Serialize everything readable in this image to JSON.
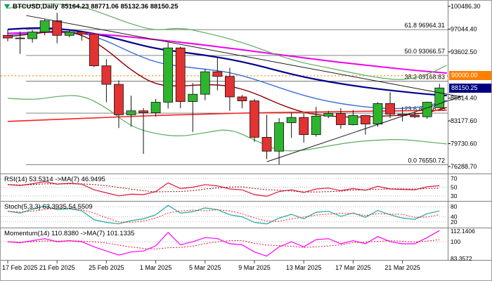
{
  "window": {
    "symbol_title": "BTCUSD,Daily",
    "ohlc_text": "85164.23 88771.06 85132.36 88150.25"
  },
  "colors": {
    "background": "#ffffff",
    "bull": "#2eb52e",
    "bear": "#e23232",
    "candle_border": "#111111",
    "axis_text": "#000000",
    "separator": "#808080",
    "fib_line": "#707070",
    "trendline": "#1a1a1a",
    "level_line": "#b8b8b8",
    "hline_90000": "#ff8000",
    "badge_90000_bg": "#ff8000",
    "badge_current_bg": "#000080"
  },
  "chart_data": {
    "type": "candlestick",
    "symbol": "BTCUSD",
    "timeframe": "Daily",
    "current_ohlc": {
      "open": 85164.23,
      "high": 88771.06,
      "low": 85132.36,
      "close": 88150.25
    },
    "ylim": [
      75333,
      101123
    ],
    "y_axis_labels": [
      "100486.30",
      "97044.40",
      "93602.50",
      "86614.40",
      "83177.60",
      "79730.60",
      "76288.70"
    ],
    "price_badges": [
      {
        "name": "hline-price",
        "label": "90000.00",
        "price": 90000.0
      },
      {
        "name": "current-price",
        "label": "88150.25",
        "price": 88150.25
      }
    ],
    "hline": {
      "price": 90000.0,
      "label": "90000.00"
    },
    "fibonacci": [
      {
        "label": "61.8",
        "price": 96964.31
      },
      {
        "label": "50.0",
        "price": 93066.57
      },
      {
        "label": "38.2",
        "price": 89168.83
      },
      {
        "label": "23.6",
        "price": 84346.2
      },
      {
        "label": "0.0",
        "price": 76550.72
      }
    ],
    "trendlines": [
      {
        "name": "descending",
        "from": [
          1.5,
          99100
        ],
        "to": [
          36.8,
          86800
        ]
      },
      {
        "name": "ascending",
        "from": [
          21,
          77000
        ],
        "to": [
          36.8,
          86900
        ]
      }
    ],
    "candles": [
      [
        96100,
        97000,
        95200,
        95700
      ],
      [
        95700,
        96700,
        93300,
        95600
      ],
      [
        95600,
        96900,
        95000,
        96600
      ],
      [
        96600,
        98500,
        96100,
        98300
      ],
      [
        98300,
        99500,
        94900,
        96100
      ],
      [
        96100,
        96900,
        95800,
        96600
      ],
      [
        96600,
        96700,
        95300,
        96300
      ],
      [
        96300,
        96500,
        91300,
        91500
      ],
      [
        91500,
        92500,
        86000,
        88700
      ],
      [
        88700,
        89300,
        82100,
        84100
      ],
      [
        84100,
        87000,
        82300,
        84700
      ],
      [
        84700,
        85100,
        78200,
        84400
      ],
      [
        84400,
        86500,
        83800,
        86000
      ],
      [
        86000,
        95000,
        85050,
        94200
      ],
      [
        94200,
        94400,
        85100,
        86100
      ],
      [
        86100,
        88900,
        81500,
        87200
      ],
      [
        87200,
        91000,
        86300,
        90600
      ],
      [
        90600,
        92800,
        87800,
        89900
      ],
      [
        89900,
        91200,
        84700,
        86800
      ],
      [
        86800,
        87100,
        85100,
        86200
      ],
      [
        86200,
        86500,
        80000,
        80700
      ],
      [
        80700,
        84100,
        77400,
        78600
      ],
      [
        78600,
        83600,
        76600,
        82900
      ],
      [
        82900,
        84400,
        80600,
        83700
      ],
      [
        83700,
        84300,
        79900,
        81100
      ],
      [
        81100,
        85300,
        80800,
        83900
      ],
      [
        83900,
        84700,
        83600,
        84300
      ],
      [
        84300,
        85100,
        82000,
        82600
      ],
      [
        82600,
        84800,
        82500,
        84000
      ],
      [
        84000,
        84100,
        81100,
        82700
      ],
      [
        82700,
        86000,
        82300,
        85800
      ],
      [
        85800,
        87500,
        83600,
        84200
      ],
      [
        84200,
        85300,
        83100,
        84000
      ],
      [
        84000,
        84500,
        83600,
        83800
      ],
      [
        83800,
        86100,
        83500,
        86000
      ],
      [
        85164.23,
        88771.06,
        85132.36,
        88150.25
      ]
    ],
    "overlays": [
      {
        "name": "ma-navy",
        "color": "#00008b",
        "width": 2.2,
        "points": [
          [
            0,
            97000
          ],
          [
            2,
            97250
          ],
          [
            4,
            97150
          ],
          [
            6,
            96700
          ],
          [
            8,
            96000
          ],
          [
            10,
            95000
          ],
          [
            12,
            94100
          ],
          [
            14,
            93600
          ],
          [
            16,
            93100
          ],
          [
            18,
            92500
          ],
          [
            20,
            91700
          ],
          [
            22,
            90700
          ],
          [
            24,
            89800
          ],
          [
            26,
            89100
          ],
          [
            28,
            88500
          ],
          [
            30,
            88000
          ],
          [
            32,
            87600
          ],
          [
            34,
            87200
          ],
          [
            35.6,
            87000
          ]
        ]
      },
      {
        "name": "ma-magenta",
        "color": "#ee00ee",
        "width": 2,
        "points": [
          [
            0,
            96400
          ],
          [
            3,
            96650
          ],
          [
            6,
            96450
          ],
          [
            9,
            96050
          ],
          [
            12,
            95450
          ],
          [
            15,
            94850
          ],
          [
            18,
            94150
          ],
          [
            21,
            93450
          ],
          [
            24,
            92700
          ],
          [
            27,
            92000
          ],
          [
            30,
            91400
          ],
          [
            33,
            90800
          ],
          [
            35.6,
            90400
          ]
        ]
      },
      {
        "name": "ma-blue",
        "color": "#3a6fd8",
        "width": 1.4,
        "points": [
          [
            0,
            96100
          ],
          [
            2,
            96450
          ],
          [
            4,
            96800
          ],
          [
            6,
            96500
          ],
          [
            8,
            95300
          ],
          [
            10,
            93500
          ],
          [
            12,
            92000
          ],
          [
            14,
            91400
          ],
          [
            16,
            91000
          ],
          [
            18,
            90500
          ],
          [
            20,
            89500
          ],
          [
            22,
            88200
          ],
          [
            24,
            87000
          ],
          [
            26,
            86100
          ],
          [
            28,
            85500
          ],
          [
            30,
            85100
          ],
          [
            32,
            85000
          ],
          [
            34,
            85400
          ],
          [
            35.6,
            86300
          ]
        ]
      },
      {
        "name": "ma-maroon",
        "color": "#8b0000",
        "width": 1.4,
        "points": [
          [
            0,
            95900
          ],
          [
            2,
            96300
          ],
          [
            4,
            96800
          ],
          [
            6,
            96300
          ],
          [
            8,
            94000
          ],
          [
            10,
            90800
          ],
          [
            12,
            88600
          ],
          [
            14,
            88400
          ],
          [
            16,
            88700
          ],
          [
            18,
            88500
          ],
          [
            20,
            87400
          ],
          [
            22,
            85700
          ],
          [
            24,
            84400
          ],
          [
            26,
            83900
          ],
          [
            28,
            83700
          ],
          [
            30,
            83900
          ],
          [
            32,
            84000
          ],
          [
            34,
            84400
          ],
          [
            35.6,
            85200
          ]
        ]
      },
      {
        "name": "ma-red",
        "color": "#ff2020",
        "width": 1.6,
        "points": [
          [
            0,
            83100
          ],
          [
            4,
            83400
          ],
          [
            8,
            83700
          ],
          [
            12,
            84000
          ],
          [
            16,
            84200
          ],
          [
            20,
            84400
          ],
          [
            24,
            84500
          ],
          [
            28,
            84600
          ],
          [
            32,
            84700
          ],
          [
            35.6,
            84800
          ]
        ]
      },
      {
        "name": "env-upper",
        "color": "#5dab5d",
        "width": 1.2,
        "points": [
          [
            0,
            100200
          ],
          [
            2,
            100700
          ],
          [
            4,
            100900
          ],
          [
            6,
            100500
          ],
          [
            8,
            99200
          ],
          [
            10,
            97800
          ],
          [
            12,
            96800
          ],
          [
            14,
            97300
          ],
          [
            16,
            96500
          ],
          [
            18,
            95600
          ],
          [
            20,
            94400
          ],
          [
            22,
            93000
          ],
          [
            24,
            91900
          ],
          [
            26,
            91200
          ],
          [
            28,
            90400
          ],
          [
            30,
            89700
          ],
          [
            32,
            89300
          ],
          [
            34,
            90100
          ],
          [
            35.6,
            91600
          ]
        ]
      },
      {
        "name": "env-lower",
        "color": "#5dab5d",
        "width": 1.2,
        "points": [
          [
            0,
            86600
          ],
          [
            2,
            86300
          ],
          [
            4,
            86900
          ],
          [
            6,
            87100
          ],
          [
            8,
            85200
          ],
          [
            10,
            82300
          ],
          [
            12,
            81200
          ],
          [
            14,
            80800
          ],
          [
            16,
            81400
          ],
          [
            18,
            82000
          ],
          [
            20,
            80300
          ],
          [
            22,
            78600
          ],
          [
            24,
            78700
          ],
          [
            26,
            79400
          ],
          [
            28,
            80000
          ],
          [
            30,
            80300
          ],
          [
            32,
            80400
          ],
          [
            34,
            80000
          ],
          [
            35.6,
            79700
          ]
        ]
      }
    ],
    "x_ticks": [
      {
        "i": 0,
        "label": "17 Feb 2025"
      },
      {
        "i": 4,
        "label": "21 Feb 2025"
      },
      {
        "i": 8,
        "label": "25 Feb 2025"
      },
      {
        "i": 12,
        "label": "1 Mar 2025"
      },
      {
        "i": 16,
        "label": "5 Mar 2025"
      },
      {
        "i": 20,
        "label": "9 Mar 2025"
      },
      {
        "i": 24,
        "label": "13 Mar 2025"
      },
      {
        "i": 28,
        "label": "17 Mar 2025"
      },
      {
        "i": 32,
        "label": "21 Mar 2025"
      }
    ],
    "indicators": [
      {
        "id": "rsi",
        "title": "RSI(14) 53.5314 ->MA(7) 46.9495",
        "range": [
          20,
          80
        ],
        "levels": [
          {
            "label": "70",
            "value": 70,
            "line": true
          },
          {
            "label": "50",
            "value": 50,
            "line": true
          },
          {
            "label": "30",
            "value": 30,
            "line": true
          }
        ],
        "series": [
          {
            "name": "rsi-line",
            "color": "#dc143c",
            "width": 1.2,
            "values": [
              56,
              54,
              58,
              63,
              57,
              59,
              57,
              44,
              37,
              30,
              34,
              33,
              40,
              60,
              47,
              50,
              56,
              53,
              46,
              44,
              33,
              29,
              40,
              44,
              38,
              46,
              48,
              42,
              47,
              43,
              52,
              46,
              45,
              44,
              51,
              53.53
            ]
          },
          {
            "name": "rsi-ma",
            "color": "#8b0000",
            "width": 1,
            "dash": "2,2",
            "ma": 7,
            "source": 0
          }
        ]
      },
      {
        "id": "stoch",
        "title": "Stoch(5,3,3) 63.3935 54.5509",
        "range": [
          0,
          100
        ],
        "levels": [
          {
            "label": "80",
            "value": 80,
            "line": true
          },
          {
            "label": "40",
            "value": 40,
            "line": true
          },
          {
            "label": "20",
            "value": 20,
            "line": true
          }
        ],
        "series": [
          {
            "name": "stoch-main",
            "color": "#1fa7a0",
            "width": 1.2,
            "values": [
              62,
              55,
              70,
              82,
              68,
              72,
              64,
              28,
              18,
              12,
              25,
              32,
              48,
              85,
              55,
              60,
              75,
              68,
              48,
              40,
              18,
              12,
              35,
              50,
              32,
              58,
              62,
              42,
              55,
              38,
              65,
              48,
              35,
              30,
              52,
              63.39
            ]
          },
          {
            "name": "stoch-signal",
            "color": "#ff2020",
            "width": 1,
            "dash": "2,2",
            "ma": 3,
            "source": 0
          }
        ]
      },
      {
        "id": "momentum",
        "title": "Momentum(14) 110.8380 ->MA(7) 101.1335",
        "range": [
          83,
          113
        ],
        "levels": [
          {
            "label": "112.1406",
            "value": 112.1406,
            "line": false
          },
          {
            "label": "100",
            "value": 100,
            "line": true
          },
          {
            "label": "83.3572",
            "value": 83.3572,
            "line": false
          }
        ],
        "series": [
          {
            "name": "momentum-line",
            "color": "#ff00ff",
            "width": 1.2,
            "values": [
              100,
              99,
              101,
              103,
              100,
              101,
              100,
              95,
              91,
              87,
              90,
              91,
              96,
              109,
              97,
              100,
              104,
              103,
              98,
              97,
              90,
              86,
              95,
              100,
              95,
              102,
              103,
              98,
              101,
              98,
              105,
              100,
              98,
              98,
              104,
              110.84
            ]
          },
          {
            "name": "momentum-ma",
            "color": "#dc143c",
            "width": 1,
            "dash": "2,2",
            "ma": 7,
            "source": 0
          }
        ]
      }
    ]
  }
}
